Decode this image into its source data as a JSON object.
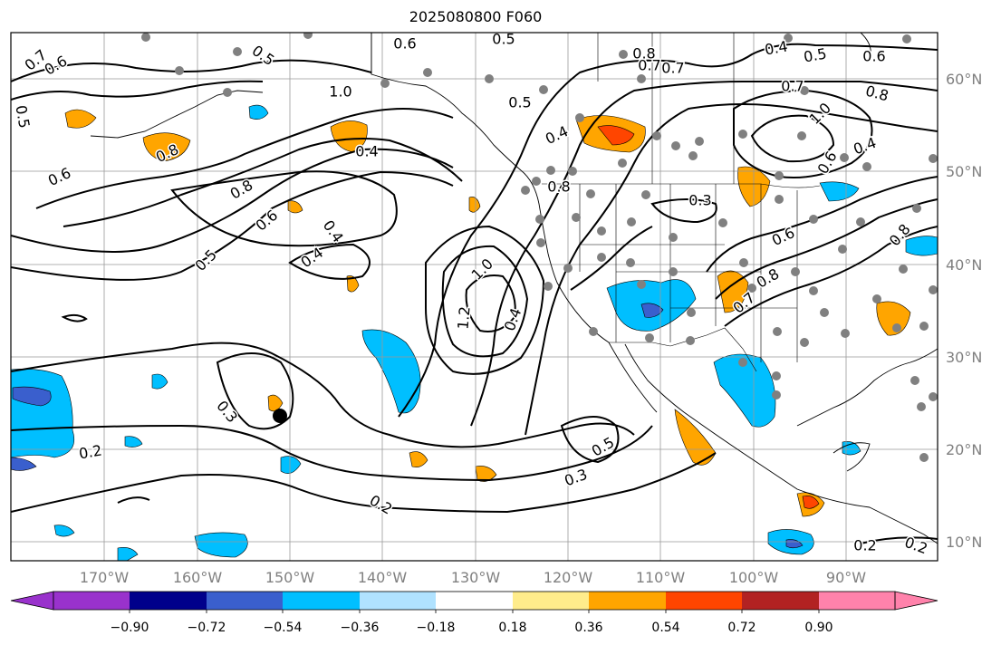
{
  "title": "2025080800 F060",
  "map": {
    "projection": "equirectangular",
    "lon_range": [
      -180,
      -80
    ],
    "lat_range": [
      8,
      65
    ],
    "lon_ticks": [
      "170°W",
      "160°W",
      "150°W",
      "140°W",
      "130°W",
      "120°W",
      "110°W",
      "100°W",
      "90°W"
    ],
    "lat_ticks": [
      "60°N",
      "50°N",
      "40°N",
      "30°N",
      "20°N",
      "10°N"
    ],
    "grid": true,
    "storm_marker_label": "storm-center"
  },
  "contour_labels": [
    "0.7",
    "0.5",
    "0.6",
    "0.5",
    "0.6",
    "0.5",
    "1.0",
    "0.8",
    "0.6",
    "0.8",
    "0.4",
    "0.4",
    "0.4",
    "0.6",
    "0.7",
    "0.7",
    "0.5",
    "0.5",
    "0.4",
    "0.8",
    "0.3",
    "1.0",
    "1.2",
    "0.4",
    "0.3",
    "0.2",
    "0.2",
    "0.3",
    "0.5",
    "0.8",
    "0.7",
    "0.5",
    "0.4",
    "0.6",
    "0.8",
    "1.0",
    "0.4",
    "0.6",
    "0.8",
    "0.6",
    "0.8",
    "0.7",
    "0.2",
    "0.2"
  ],
  "colorbar": {
    "ticks": [
      "−0.90",
      "−0.72",
      "−0.54",
      "−0.36",
      "−0.18",
      "0.18",
      "0.36",
      "0.54",
      "0.72",
      "0.90"
    ],
    "colors": [
      "#9932cc",
      "#00008b",
      "#3a5fcd",
      "#00bfff",
      "#b0e2ff",
      "#ffffff",
      "#ffec8b",
      "#ffa500",
      "#ff4500",
      "#b22222",
      "#ff82ab"
    ]
  }
}
